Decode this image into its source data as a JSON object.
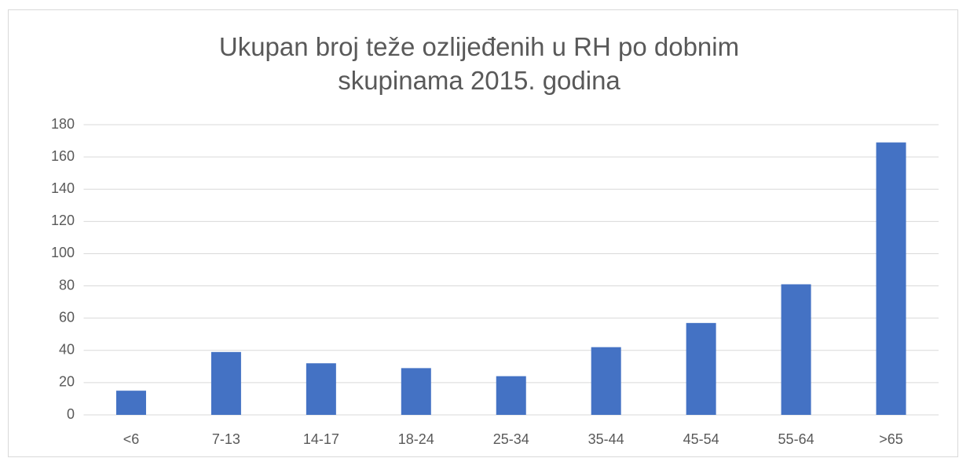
{
  "chart_data": {
    "type": "bar",
    "title": "Ukupan broj teže ozlijeđenih u RH po dobnim skupinama 2015. godina",
    "categories": [
      "<6",
      "7-13",
      "14-17",
      "18-24",
      "25-34",
      "35-44",
      "45-54",
      "55-64",
      ">65"
    ],
    "values": [
      15,
      39,
      32,
      29,
      24,
      42,
      57,
      81,
      169
    ],
    "color": "#4472c4",
    "ylim": [
      0,
      180
    ],
    "yticks": [
      0,
      20,
      40,
      60,
      80,
      100,
      120,
      140,
      160,
      180
    ],
    "grid": true
  }
}
